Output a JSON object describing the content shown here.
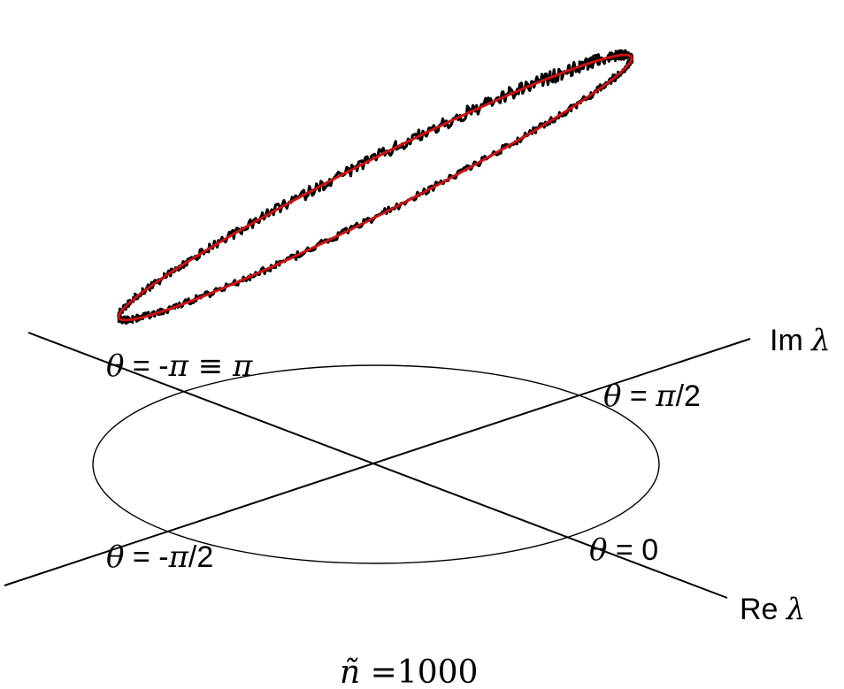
{
  "labels": {
    "im_axis": {
      "prefix": "Im ",
      "symbol": "λ"
    },
    "re_axis": {
      "prefix": "Re ",
      "symbol": "λ"
    },
    "theta_top": {
      "theta": "θ",
      "rest": " = -",
      "pi": "π",
      "equiv": " ≡ ",
      "pi2": "π"
    },
    "theta_right": {
      "theta": "θ",
      "rest": " = ",
      "pi": "π",
      "tail": "/2"
    },
    "theta_left": {
      "theta": "θ",
      "rest": " = -",
      "pi": "π",
      "tail": "/2"
    },
    "theta_zero": {
      "theta": "θ",
      "rest": " = 0"
    }
  },
  "caption": {
    "symbol": "ñ",
    "rest": " =1000"
  },
  "colors": {
    "noisy_curve": "#000000",
    "fit_curve": "#cc1111",
    "axes": "#000000"
  }
}
